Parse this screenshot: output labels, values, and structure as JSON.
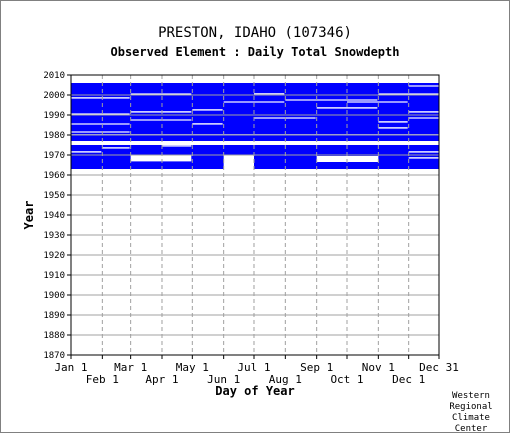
{
  "chart_data": {
    "type": "heatmap",
    "title": "PRESTON, IDAHO   (107346)",
    "subtitle": "Observed Element : Daily Total Snowdepth",
    "xlabel": "Day of Year",
    "ylabel": "Year",
    "ylim": [
      1870,
      2010
    ],
    "y_ticks": [
      2010,
      2000,
      1990,
      1980,
      1970,
      1960,
      1950,
      1940,
      1930,
      1920,
      1910,
      1900,
      1890,
      1880,
      1870
    ],
    "x_ticks_upper": [
      "Jan 1",
      "Mar 1",
      "May 1",
      "Jul 1",
      "Sep 1",
      "Nov 1",
      "Dec 31"
    ],
    "x_ticks_lower": [
      "Feb 1",
      "Apr 1",
      "Jun 1",
      "Aug 1",
      "Oct 1",
      "Dec 1"
    ],
    "tick_day_of_year": {
      "Jan 1": 1,
      "Feb 1": 32,
      "Mar 1": 60,
      "Apr 1": 91,
      "May 1": 121,
      "Jun 1": 152,
      "Jul 1": 182,
      "Aug 1": 213,
      "Sep 1": 244,
      "Oct 1": 274,
      "Nov 1": 305,
      "Dec 1": 335,
      "Dec 31": 365
    },
    "grid": true,
    "fill_color": "#0000ff",
    "observed_year_ranges": [
      {
        "from_year": 1963,
        "to_year": 1975
      },
      {
        "from_year": 1977,
        "to_year": 2006
      }
    ],
    "gaps": [
      {
        "from_day": 1,
        "to_day": 365,
        "from_year": 1975.2,
        "to_year": 1976.9
      },
      {
        "from_day": 1,
        "to_day": 365,
        "from_year": 1961.0,
        "to_year": 1963.0
      },
      {
        "from_day": 60,
        "to_day": 120,
        "from_year": 1966.8,
        "to_year": 1969.8
      },
      {
        "from_day": 152,
        "to_day": 182,
        "from_year": 1963.0,
        "to_year": 1970.2
      },
      {
        "from_day": 244,
        "to_day": 305,
        "from_year": 1966.5,
        "to_year": 1969.5
      },
      {
        "from_day": 1,
        "to_day": 59,
        "from_year": 1998.2,
        "to_year": 1998.9
      },
      {
        "from_day": 1,
        "to_day": 59,
        "from_year": 1990.2,
        "to_year": 1990.8
      },
      {
        "from_day": 1,
        "to_day": 59,
        "from_year": 1985.2,
        "to_year": 1985.8
      },
      {
        "from_day": 1,
        "to_day": 59,
        "from_year": 1981.2,
        "to_year": 1981.8
      },
      {
        "from_day": 1,
        "to_day": 365,
        "from_year": 1979.9,
        "to_year": 1980.4
      },
      {
        "from_day": 60,
        "to_day": 120,
        "from_year": 2000.2,
        "to_year": 2000.8
      },
      {
        "from_day": 60,
        "to_day": 120,
        "from_year": 1991.2,
        "to_year": 1991.9
      },
      {
        "from_day": 60,
        "to_day": 120,
        "from_year": 1987.2,
        "to_year": 1987.8
      },
      {
        "from_day": 121,
        "to_day": 151,
        "from_year": 1992.2,
        "to_year": 1992.9
      },
      {
        "from_day": 121,
        "to_day": 151,
        "from_year": 1985.2,
        "to_year": 1985.9
      },
      {
        "from_day": 152,
        "to_day": 212,
        "from_year": 1996.2,
        "to_year": 1996.8
      },
      {
        "from_day": 182,
        "to_day": 212,
        "from_year": 2000.3,
        "to_year": 2000.9
      },
      {
        "from_day": 182,
        "to_day": 243,
        "from_year": 1988.2,
        "to_year": 1988.8
      },
      {
        "from_day": 213,
        "to_day": 304,
        "from_year": 1997.2,
        "to_year": 1997.8
      },
      {
        "from_day": 244,
        "to_day": 304,
        "from_year": 1993.2,
        "to_year": 1993.9
      },
      {
        "from_day": 274,
        "to_day": 334,
        "from_year": 1996.2,
        "to_year": 1996.8
      },
      {
        "from_day": 305,
        "to_day": 334,
        "from_year": 1986.2,
        "to_year": 1986.9
      },
      {
        "from_day": 305,
        "to_day": 334,
        "from_year": 1983.2,
        "to_year": 1983.9
      },
      {
        "from_day": 305,
        "to_day": 365,
        "from_year": 2000.2,
        "to_year": 2000.8
      },
      {
        "from_day": 335,
        "to_day": 365,
        "from_year": 1991.2,
        "to_year": 1991.9
      },
      {
        "from_day": 335,
        "to_day": 365,
        "from_year": 1988.2,
        "to_year": 1988.8
      },
      {
        "from_day": 335,
        "to_day": 365,
        "from_year": 2004.2,
        "to_year": 2004.8
      },
      {
        "from_day": 335,
        "to_day": 365,
        "from_year": 1971.2,
        "to_year": 1971.9
      },
      {
        "from_day": 335,
        "to_day": 365,
        "from_year": 1968.2,
        "to_year": 1968.9
      },
      {
        "from_day": 1,
        "to_day": 31,
        "from_year": 1971.2,
        "to_year": 1971.9
      },
      {
        "from_day": 32,
        "to_day": 59,
        "from_year": 1973.2,
        "to_year": 1973.9
      },
      {
        "from_day": 91,
        "to_day": 120,
        "from_year": 1974.2,
        "to_year": 1974.9
      }
    ]
  },
  "credit_lines": [
    "Western",
    "Regional",
    "Climate",
    "Center"
  ]
}
